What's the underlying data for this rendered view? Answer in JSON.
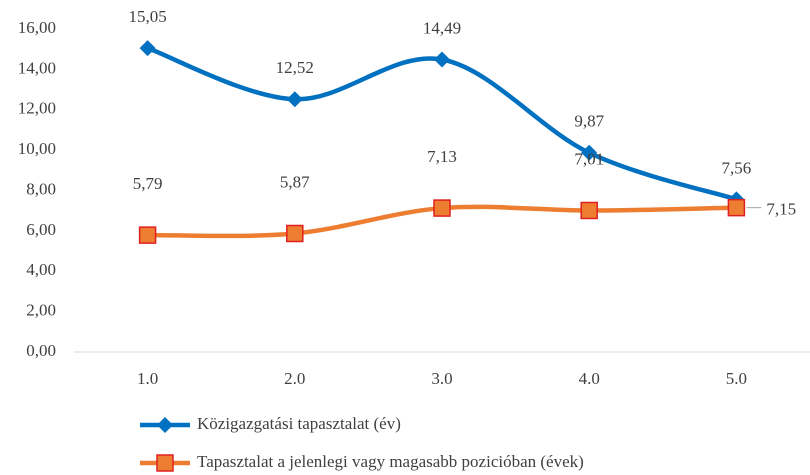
{
  "chart_data": {
    "type": "line",
    "categories": [
      "1.0",
      "2.0",
      "3.0",
      "4.0",
      "5.0"
    ],
    "series": [
      {
        "name": "Közigazgatási tapasztalat (év)",
        "color": "#0070c0",
        "marker": "diamond",
        "values": [
          15.05,
          12.52,
          14.49,
          9.87,
          7.56
        ],
        "value_labels": [
          "15,05",
          "12,52",
          "14,49",
          "9,87",
          "7,56"
        ]
      },
      {
        "name": "Tapasztalat a jelenlegi vagy magasabb pozicióban (évek)",
        "color": "#ed7d31",
        "marker": "square",
        "values": [
          5.79,
          5.87,
          7.13,
          7.01,
          7.15
        ],
        "value_labels": [
          "5,79",
          "5,87",
          "7,13",
          "7,01",
          "7,15"
        ]
      }
    ],
    "ylim": [
      0,
      16
    ],
    "yticks": [
      {
        "value": 0,
        "label": "0,00"
      },
      {
        "value": 2,
        "label": "2,00"
      },
      {
        "value": 4,
        "label": "4,00"
      },
      {
        "value": 6,
        "label": "6,00"
      },
      {
        "value": 8,
        "label": "8,00"
      },
      {
        "value": 10,
        "label": "10,00"
      },
      {
        "value": 12,
        "label": "12,00"
      },
      {
        "value": 14,
        "label": "14,00"
      },
      {
        "value": 16,
        "label": "16,00"
      }
    ],
    "grid": false,
    "legend": "bottom"
  }
}
